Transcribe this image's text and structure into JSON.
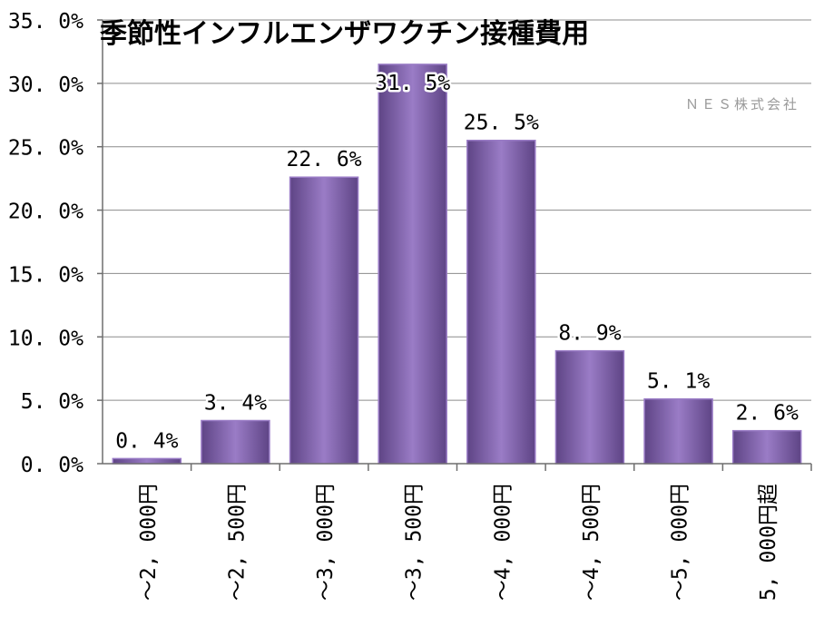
{
  "chart_data": {
    "type": "bar",
    "title": "季節性インフルエンザワクチン接種費用",
    "watermark": "ＮＥＳ株式会社",
    "categories": [
      "～2, 000円",
      "～2, 500円",
      "～3, 000円",
      "～3, 500円",
      "～4, 000円",
      "～4, 500円",
      "～5, 000円",
      "5, 000円超"
    ],
    "values": [
      0.4,
      3.4,
      22.6,
      31.5,
      25.5,
      8.9,
      5.1,
      2.6
    ],
    "data_labels": [
      "0. 4%",
      "3. 4%",
      "22. 6%",
      "31. 5%",
      "25. 5%",
      "8. 9%",
      "5. 1%",
      "2. 6%"
    ],
    "yticks": [
      0,
      5,
      10,
      15,
      20,
      25,
      30,
      35
    ],
    "ytick_labels": [
      "0. 0%",
      "5. 0%",
      "10. 0%",
      "15. 0%",
      "20. 0%",
      "25. 0%",
      "30. 0%",
      "35. 0%"
    ],
    "ylim": [
      0,
      35
    ],
    "xlabel": "",
    "ylabel": "",
    "grid": true,
    "legend": "none",
    "bar_color": "#7e5ea8",
    "bar_color_light": "#9a7cc6",
    "bar_color_dark": "#5e4485"
  }
}
